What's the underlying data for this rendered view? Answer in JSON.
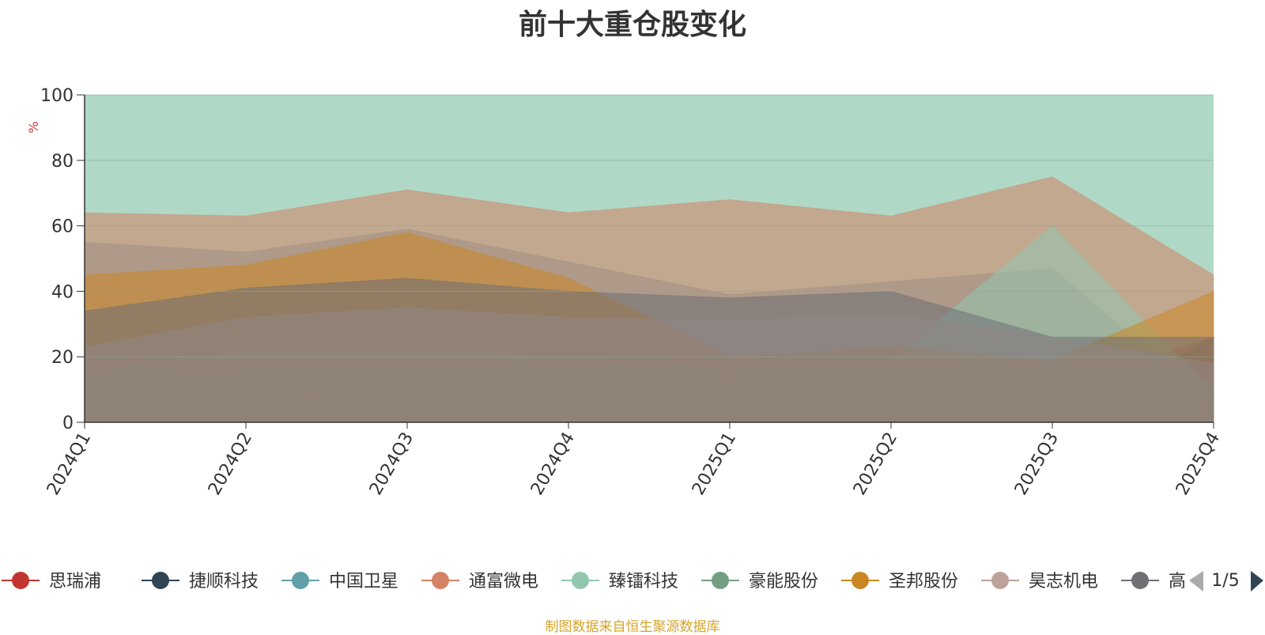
{
  "chart_data": {
    "type": "area",
    "title": "前十大重仓股变化",
    "ylabel": "%",
    "ylim": [
      0,
      100
    ],
    "yticks": [
      0,
      20,
      40,
      60,
      80,
      100
    ],
    "categories": [
      "2024Q1",
      "2024Q2",
      "2024Q3",
      "2024Q4",
      "2025Q1",
      "2025Q2",
      "2025Q3",
      "2025Q4"
    ],
    "series": [
      {
        "name": "思瑞浦",
        "color": "#c23531",
        "values": [
          10,
          7,
          15,
          11,
          16,
          13,
          10,
          26
        ]
      },
      {
        "name": "捷顺科技",
        "color": "#2f4554",
        "values": [
          4,
          0,
          0,
          0,
          4,
          13,
          0,
          26
        ]
      },
      {
        "name": "中国卫星",
        "color": "#61a0a8",
        "values": [
          55,
          52,
          59,
          49,
          39,
          43,
          47,
          5
        ]
      },
      {
        "name": "通富微电",
        "color": "#d48265",
        "values": [
          64,
          63,
          71,
          64,
          68,
          63,
          75,
          45
        ]
      },
      {
        "name": "臻镭科技",
        "color": "#91c7ae",
        "values": [
          15,
          22,
          23,
          20,
          16,
          19,
          60,
          9
        ]
      },
      {
        "name": "豪能股份",
        "color": "#749f83",
        "values": [
          15,
          13,
          15,
          15,
          15,
          13,
          10,
          13
        ]
      },
      {
        "name": "圣邦股份",
        "color": "#ca8622",
        "values": [
          45,
          48,
          58,
          44,
          20,
          23,
          19,
          40
        ]
      },
      {
        "name": "昊志机电",
        "color": "#bda29a",
        "values": [
          23,
          32,
          35,
          32,
          31,
          33,
          26,
          18
        ]
      },
      {
        "name": "高",
        "color": "#6e7074",
        "values": [
          34,
          41,
          44,
          40,
          38,
          40,
          26,
          26
        ]
      }
    ],
    "background_series_color": "#b0d8c6",
    "legend": {
      "placement": "bottom",
      "page": "1/5"
    }
  },
  "source": "制图数据来自恒生聚源数据库"
}
